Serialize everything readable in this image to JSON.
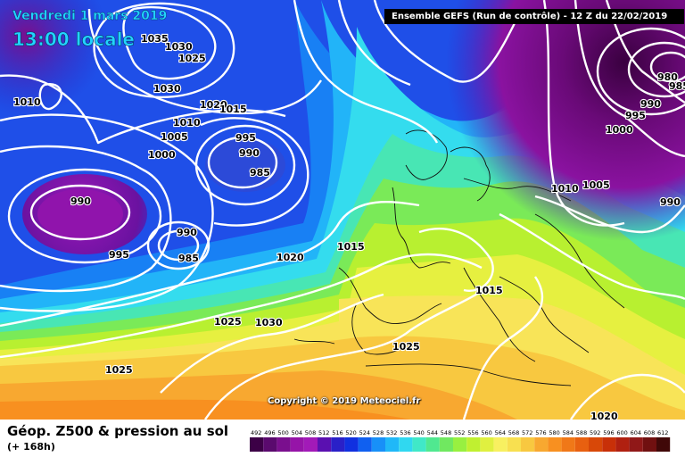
{
  "map": {
    "date_line": "Vendredi 1 mars 2019",
    "time_line": "13:00 locale",
    "header": "Ensemble GEFS  (Run de contrôle)  -  12 Z du 22/02/2019",
    "copyright": "Copyright © 2019 Meteociel.fr",
    "isobar_labels": [
      "1035",
      "1030",
      "1025",
      "1030",
      "1010",
      "1020",
      "1015",
      "1010",
      "1005",
      "995",
      "1000",
      "990",
      "985",
      "990",
      "990",
      "985",
      "995",
      "1020",
      "1015",
      "1015",
      "1025",
      "1030",
      "1025",
      "1025",
      "1020",
      "1010",
      "1005",
      "1000",
      "995",
      "985",
      "980",
      "990",
      "990"
    ]
  },
  "legend": {
    "title": "Géop. Z500 & pression au sol",
    "subtitle": "(+ 168h)",
    "ticks": [
      "492",
      "496",
      "500",
      "504",
      "508",
      "512",
      "516",
      "520",
      "524",
      "528",
      "532",
      "536",
      "540",
      "544",
      "548",
      "552",
      "556",
      "560",
      "564",
      "568",
      "572",
      "576",
      "580",
      "584",
      "588",
      "592",
      "596",
      "600",
      "604",
      "608",
      "612"
    ],
    "colors": [
      "#3c0046",
      "#5a0a6e",
      "#7a0f8e",
      "#9614a8",
      "#a21ab8",
      "#5a10b0",
      "#2a20c8",
      "#1030e0",
      "#1060f0",
      "#1890f8",
      "#20b8f8",
      "#30d8f0",
      "#40e8c8",
      "#50e890",
      "#70e860",
      "#98f040",
      "#c0f030",
      "#e0f040",
      "#f8f060",
      "#f8e050",
      "#f8c840",
      "#f8a830",
      "#f89020",
      "#f07818",
      "#e86010",
      "#d84808",
      "#c83008",
      "#b02010",
      "#901818",
      "#701010",
      "#400808"
    ]
  }
}
